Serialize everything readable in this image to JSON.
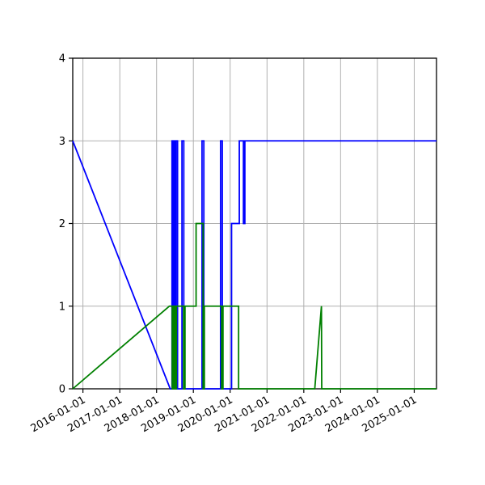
{
  "figure": {
    "background": "#ffffff",
    "title": ""
  },
  "chart_data": {
    "type": "line",
    "title": "",
    "xlabel": "",
    "ylabel": "",
    "grid": true,
    "legend": "none",
    "grid_color": "#b0b0b0",
    "axis_color": "#000000",
    "tick_label_color": "#000000",
    "tick_label_rotation": -30,
    "x_domain": [
      "2015-09-22",
      "2025-08-10"
    ],
    "ylim": [
      0,
      4
    ],
    "y_ticks": [
      "0",
      "1",
      "2",
      "3",
      "4"
    ],
    "x_ticks": [
      "2016-01-01",
      "2017-01-01",
      "2018-01-01",
      "2019-01-01",
      "2020-01-01",
      "2021-01-01",
      "2022-01-01",
      "2023-01-01",
      "2024-01-01",
      "2025-01-01"
    ],
    "series": [
      {
        "name": "blue-series",
        "color": "#0000ff",
        "points": [
          [
            "2015-09-22",
            3
          ],
          [
            "2018-05-16",
            0
          ],
          [
            "2018-06-03",
            0
          ],
          [
            "2018-06-03",
            3
          ],
          [
            "2018-06-13",
            3
          ],
          [
            "2018-06-13",
            0
          ],
          [
            "2018-06-23",
            0
          ],
          [
            "2018-06-23",
            3
          ],
          [
            "2018-07-03",
            3
          ],
          [
            "2018-07-03",
            0
          ],
          [
            "2018-07-13",
            0
          ],
          [
            "2018-07-13",
            3
          ],
          [
            "2018-07-28",
            3
          ],
          [
            "2018-07-28",
            0
          ],
          [
            "2018-09-10",
            0
          ],
          [
            "2018-09-10",
            3
          ],
          [
            "2018-09-28",
            3
          ],
          [
            "2018-09-28",
            0
          ],
          [
            "2019-03-28",
            0
          ],
          [
            "2019-03-28",
            3
          ],
          [
            "2019-04-15",
            3
          ],
          [
            "2019-04-15",
            0
          ],
          [
            "2019-09-28",
            0
          ],
          [
            "2019-09-28",
            3
          ],
          [
            "2019-10-15",
            3
          ],
          [
            "2019-10-15",
            0
          ],
          [
            "2020-01-15",
            0
          ],
          [
            "2020-01-15",
            2
          ],
          [
            "2020-04-01",
            2
          ],
          [
            "2020-04-01",
            3
          ],
          [
            "2020-05-12",
            3
          ],
          [
            "2020-05-12",
            2
          ],
          [
            "2020-05-26",
            2
          ],
          [
            "2020-05-26",
            3
          ],
          [
            "2025-08-10",
            3
          ]
        ]
      },
      {
        "name": "green-series",
        "color": "#008000",
        "points": [
          [
            "2015-09-22",
            0
          ],
          [
            "2018-05-08",
            1
          ],
          [
            "2018-06-05",
            1
          ],
          [
            "2018-06-05",
            0
          ],
          [
            "2018-06-14",
            0
          ],
          [
            "2018-06-14",
            1
          ],
          [
            "2018-06-22",
            1
          ],
          [
            "2018-06-22",
            0
          ],
          [
            "2018-07-01",
            0
          ],
          [
            "2018-07-01",
            1
          ],
          [
            "2018-07-08",
            1
          ],
          [
            "2018-07-08",
            0
          ],
          [
            "2018-07-17",
            0
          ],
          [
            "2018-07-17",
            1
          ],
          [
            "2018-09-26",
            1
          ],
          [
            "2018-09-26",
            0
          ],
          [
            "2018-10-10",
            0
          ],
          [
            "2018-10-10",
            1
          ],
          [
            "2019-01-28",
            1
          ],
          [
            "2019-01-28",
            2
          ],
          [
            "2019-04-08",
            2
          ],
          [
            "2019-04-08",
            0
          ],
          [
            "2019-04-20",
            0
          ],
          [
            "2019-04-20",
            1
          ],
          [
            "2019-10-08",
            1
          ],
          [
            "2019-10-08",
            0
          ],
          [
            "2019-10-22",
            0
          ],
          [
            "2019-10-22",
            1
          ],
          [
            "2020-03-25",
            1
          ],
          [
            "2020-03-25",
            0
          ],
          [
            "2022-04-20",
            0
          ],
          [
            "2022-06-25",
            1
          ],
          [
            "2022-06-28",
            0
          ],
          [
            "2025-08-10",
            0
          ]
        ]
      }
    ]
  }
}
